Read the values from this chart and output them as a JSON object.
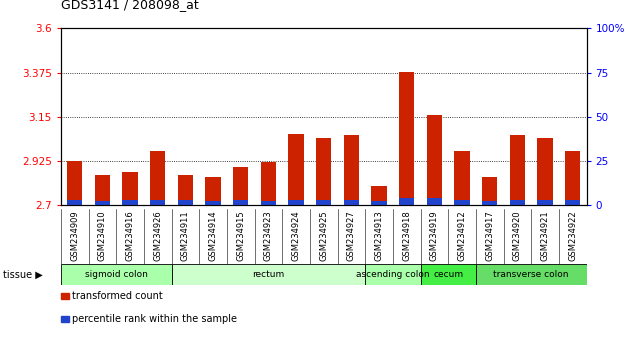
{
  "title": "GDS3141 / 208098_at",
  "samples": [
    "GSM234909",
    "GSM234910",
    "GSM234916",
    "GSM234926",
    "GSM234911",
    "GSM234914",
    "GSM234915",
    "GSM234923",
    "GSM234924",
    "GSM234925",
    "GSM234927",
    "GSM234913",
    "GSM234918",
    "GSM234919",
    "GSM234912",
    "GSM234917",
    "GSM234920",
    "GSM234921",
    "GSM234922"
  ],
  "red_values": [
    2.925,
    2.855,
    2.87,
    2.975,
    2.855,
    2.845,
    2.895,
    2.92,
    3.065,
    3.04,
    3.06,
    2.8,
    3.38,
    3.16,
    2.975,
    2.845,
    3.06,
    3.04,
    2.975
  ],
  "blue_heights": [
    0.025,
    0.022,
    0.025,
    0.028,
    0.025,
    0.022,
    0.025,
    0.022,
    0.028,
    0.025,
    0.025,
    0.022,
    0.038,
    0.038,
    0.028,
    0.022,
    0.028,
    0.028,
    0.025
  ],
  "blue_bottoms": [
    2.7,
    2.7,
    2.7,
    2.7,
    2.7,
    2.7,
    2.7,
    2.7,
    2.7,
    2.7,
    2.7,
    2.7,
    2.7,
    2.7,
    2.7,
    2.7,
    2.7,
    2.7,
    2.7
  ],
  "ymin": 2.7,
  "ymax": 3.6,
  "yticks_left": [
    2.7,
    2.925,
    3.15,
    3.375,
    3.6
  ],
  "yticks_right": [
    0,
    25,
    50,
    75,
    100
  ],
  "grid_vals": [
    2.925,
    3.15,
    3.375
  ],
  "tissue_groups": [
    {
      "label": "sigmoid colon",
      "start": 0,
      "end": 4,
      "color": "#aaffaa"
    },
    {
      "label": "rectum",
      "start": 4,
      "end": 11,
      "color": "#ccffcc"
    },
    {
      "label": "ascending colon",
      "start": 11,
      "end": 13,
      "color": "#aaffaa"
    },
    {
      "label": "cecum",
      "start": 13,
      "end": 15,
      "color": "#44ee44"
    },
    {
      "label": "transverse colon",
      "start": 15,
      "end": 19,
      "color": "#66dd66"
    }
  ],
  "bar_width": 0.55,
  "red_color": "#cc2200",
  "blue_color": "#2244cc",
  "plot_bg": "#ffffff",
  "label_bg": "#cccccc"
}
